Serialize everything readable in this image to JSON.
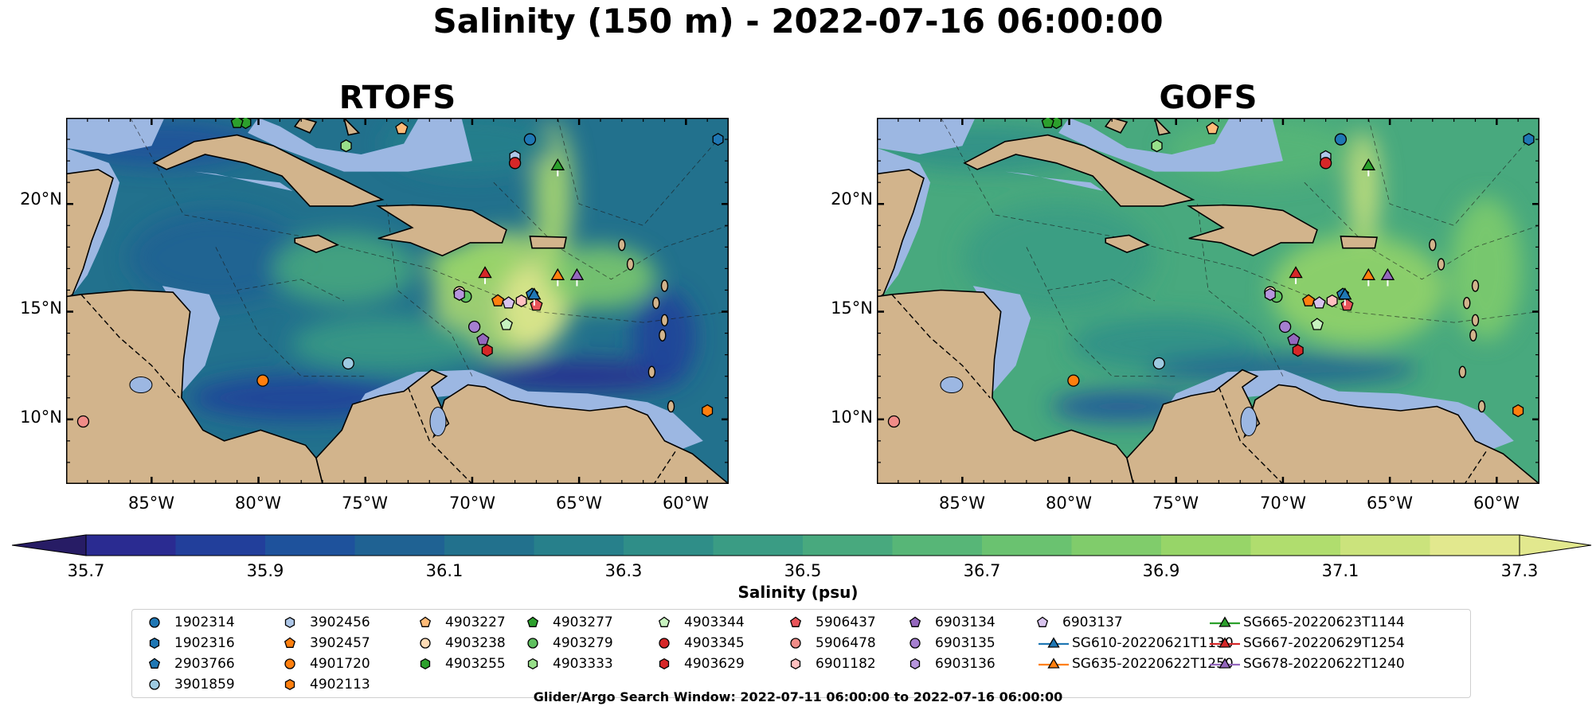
{
  "figure": {
    "title": "Salinity (150 m) - 2022-07-16 06:00:00",
    "footer": "Glider/Argo Search Window: 2022-07-11 06:00:00 to 2022-07-16 06:00:00"
  },
  "map": {
    "lon_range": [
      -89,
      -58
    ],
    "lat_range": [
      7,
      24
    ],
    "x_ticks": [
      "85°W",
      "80°W",
      "75°W",
      "70°W",
      "65°W",
      "60°W"
    ],
    "y_ticks": [
      "20°N",
      "15°N",
      "10°N"
    ],
    "land_color": "#d2b48c",
    "shelf_color": "#9cb7e2"
  },
  "panels": [
    {
      "title": "RTOFS",
      "field_palette": "high-contrast"
    },
    {
      "title": "GOFS",
      "field_palette": "muted"
    }
  ],
  "colorbar": {
    "label": "Salinity (psu)",
    "min": 35.7,
    "max": 37.3,
    "step": 0.1,
    "tick_labels": [
      "35.7",
      "35.9",
      "36.1",
      "36.3",
      "36.5",
      "36.7",
      "36.9",
      "37.1",
      "37.3"
    ],
    "colors": [
      "#271c65",
      "#2a2b91",
      "#223f9b",
      "#1e529c",
      "#1f6293",
      "#22718d",
      "#27808b",
      "#2f8e88",
      "#3a9c84",
      "#48a97e",
      "#57b677",
      "#6ac270",
      "#80cc6b",
      "#97d568",
      "#b0dd6e",
      "#cbe37c",
      "#e2e88e"
    ]
  },
  "legend": {
    "items": [
      {
        "label": "1902314",
        "marker": "circle",
        "color": "#1f77b4"
      },
      {
        "label": "1902316",
        "marker": "hexagon",
        "color": "#1f77b4"
      },
      {
        "label": "2903766",
        "marker": "pentagon",
        "color": "#1f77b4"
      },
      {
        "label": "3901859",
        "marker": "circle",
        "color": "#9ecae1"
      },
      {
        "label": "3902456",
        "marker": "hexagon",
        "color": "#aec7e8"
      },
      {
        "label": "3902457",
        "marker": "pentagon",
        "color": "#ff7f0e"
      },
      {
        "label": "4901720",
        "marker": "circle",
        "color": "#ff7f0e"
      },
      {
        "label": "4902113",
        "marker": "hexagon",
        "color": "#ff7f0e"
      },
      {
        "label": "4903227",
        "marker": "pentagon",
        "color": "#ffbb78"
      },
      {
        "label": "4903238",
        "marker": "circle",
        "color": "#ffdcb6"
      },
      {
        "label": "4903255",
        "marker": "hexagon",
        "color": "#2ca02c"
      },
      {
        "label": "4903277",
        "marker": "pentagon",
        "color": "#2ca02c"
      },
      {
        "label": "4903279",
        "marker": "circle",
        "color": "#5fc05f"
      },
      {
        "label": "4903333",
        "marker": "hexagon",
        "color": "#98df8a"
      },
      {
        "label": "4903344",
        "marker": "pentagon",
        "color": "#c7f2bf"
      },
      {
        "label": "4903345",
        "marker": "circle",
        "color": "#d62728"
      },
      {
        "label": "4903629",
        "marker": "hexagon",
        "color": "#d62728"
      },
      {
        "label": "5906437",
        "marker": "pentagon",
        "color": "#e9555a"
      },
      {
        "label": "5906478",
        "marker": "circle",
        "color": "#f08c88"
      },
      {
        "label": "6901182",
        "marker": "hexagon",
        "color": "#ffc0c0"
      },
      {
        "label": "6903134",
        "marker": "pentagon",
        "color": "#9467bd"
      },
      {
        "label": "6903135",
        "marker": "circle",
        "color": "#a57fd0"
      },
      {
        "label": "6903136",
        "marker": "hexagon",
        "color": "#b695dc"
      },
      {
        "label": "6903137",
        "marker": "pentagon",
        "color": "#d8c3ee"
      },
      {
        "label": "SG610-20220621T1130",
        "marker": "triangle-line",
        "color": "#1f77b4"
      },
      {
        "label": "SG635-20220622T1250",
        "marker": "triangle-line",
        "color": "#ff7f0e"
      },
      {
        "label": "SG665-20220623T1144",
        "marker": "triangle-line",
        "color": "#2ca02c"
      },
      {
        "label": "SG667-20220629T1254",
        "marker": "triangle-line",
        "color": "#d62728"
      },
      {
        "label": "SG678-20220622T1240",
        "marker": "triangle-line",
        "color": "#9467bd"
      }
    ]
  },
  "markers": [
    {
      "id": "1902314",
      "lon": -67.3,
      "lat": 23.0
    },
    {
      "id": "1902316",
      "lon": -58.5,
      "lat": 23.0
    },
    {
      "id": "2903766",
      "lon": -67.2,
      "lat": 15.8
    },
    {
      "id": "3901859",
      "lon": -75.8,
      "lat": 12.6
    },
    {
      "id": "3902456",
      "lon": -68.0,
      "lat": 22.2
    },
    {
      "id": "3902457",
      "lon": -68.8,
      "lat": 15.5
    },
    {
      "id": "4901720",
      "lon": -79.8,
      "lat": 11.8
    },
    {
      "id": "4902113",
      "lon": -59.0,
      "lat": 10.4
    },
    {
      "id": "4903227",
      "lon": -73.3,
      "lat": 23.5
    },
    {
      "id": "4903238",
      "lon": -70.6,
      "lat": 15.9
    },
    {
      "id": "4903255",
      "lon": -80.6,
      "lat": 24.0
    },
    {
      "id": "4903277",
      "lon": -81.0,
      "lat": 23.9
    },
    {
      "id": "4903279",
      "lon": -70.3,
      "lat": 15.7
    },
    {
      "id": "4903333",
      "lon": -75.9,
      "lat": 22.7
    },
    {
      "id": "4903344",
      "lon": -68.4,
      "lat": 14.4
    },
    {
      "id": "4903345",
      "lon": -68.0,
      "lat": 21.9
    },
    {
      "id": "4903629",
      "lon": -69.3,
      "lat": 13.2
    },
    {
      "id": "5906437",
      "lon": -67.0,
      "lat": 15.3
    },
    {
      "id": "5906478",
      "lon": -88.2,
      "lat": 9.9
    },
    {
      "id": "6901182",
      "lon": -67.7,
      "lat": 15.5
    },
    {
      "id": "6903134",
      "lon": -69.5,
      "lat": 13.7
    },
    {
      "id": "6903135",
      "lon": -69.9,
      "lat": 14.3
    },
    {
      "id": "6903136",
      "lon": -70.6,
      "lat": 15.8
    },
    {
      "id": "6903137",
      "lon": -68.3,
      "lat": 15.4
    },
    {
      "id": "SG610-20220621T1130",
      "lon": -67.1,
      "lat": 15.8
    },
    {
      "id": "SG635-20220622T1250",
      "lon": -66.0,
      "lat": 16.7
    },
    {
      "id": "SG665-20220623T1144",
      "lon": -66.0,
      "lat": 21.8
    },
    {
      "id": "SG667-20220629T1254",
      "lon": -69.4,
      "lat": 16.8
    },
    {
      "id": "SG678-20220622T1240",
      "lon": -65.1,
      "lat": 16.7
    }
  ]
}
